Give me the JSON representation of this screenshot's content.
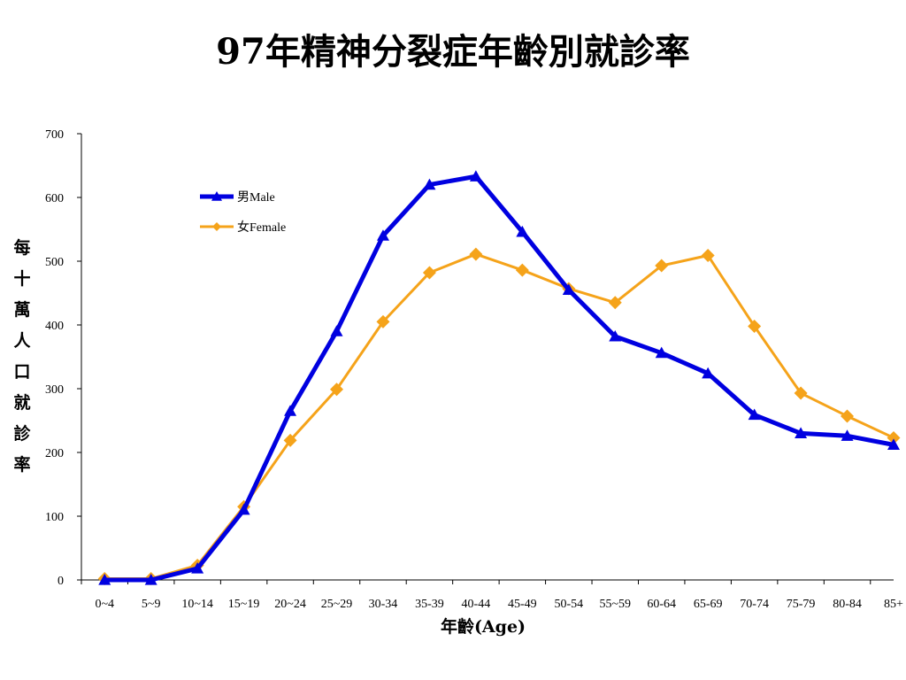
{
  "chart_data": {
    "type": "line",
    "title": "97年精神分裂症年齡別就診率",
    "xlabel": "年齡(Age)",
    "ylabel": "每十萬人口就診率",
    "ylim": [
      0,
      700
    ],
    "yticks": [
      0,
      100,
      200,
      300,
      400,
      500,
      600,
      700
    ],
    "categories": [
      "0~4",
      "5~9",
      "10~14",
      "15~19",
      "20~24",
      "25~29",
      "30-34",
      "35-39",
      "40-44",
      "45-49",
      "50-54",
      "55~59",
      "60-64",
      "65-69",
      "70-74",
      "75-79",
      "80-84",
      "85+"
    ],
    "series": [
      {
        "name": "男Male",
        "color": "#0000e0",
        "marker": "triangle",
        "values": [
          0,
          0,
          18,
          110,
          265,
          390,
          540,
          620,
          633,
          546,
          455,
          382,
          356,
          324,
          259,
          230,
          226,
          212
        ]
      },
      {
        "name": "女Female",
        "color": "#f5a31a",
        "marker": "diamond",
        "values": [
          2,
          2,
          23,
          115,
          219,
          299,
          405,
          482,
          511,
          486,
          457,
          435,
          493,
          509,
          398,
          293,
          257,
          223
        ]
      }
    ],
    "legend_position": "top-left",
    "grid": false
  }
}
